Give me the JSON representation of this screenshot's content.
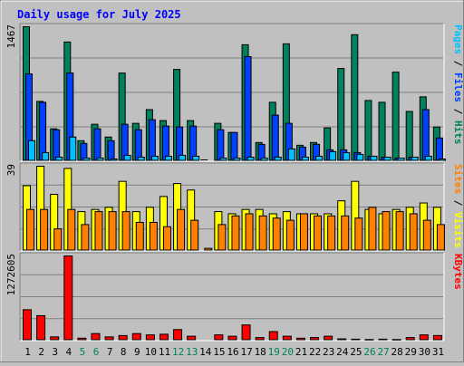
{
  "chart_data": {
    "type": "bar",
    "title": "Daily usage for July 2025",
    "categories": [
      "1",
      "2",
      "3",
      "4",
      "5",
      "6",
      "7",
      "8",
      "9",
      "10",
      "11",
      "12",
      "13",
      "14",
      "15",
      "16",
      "17",
      "18",
      "19",
      "20",
      "21",
      "22",
      "23",
      "24",
      "25",
      "26",
      "27",
      "28",
      "29",
      "30",
      "31"
    ],
    "weekend_days": [
      "5",
      "6",
      "12",
      "13",
      "19",
      "20",
      "26",
      "27"
    ],
    "panels": [
      {
        "id": "hits-panel",
        "max_label": "1467",
        "ymax": 1467,
        "legend": [
          {
            "label": "Pages",
            "color": "#00c0ff"
          },
          {
            "label": " / ",
            "color": "#000000"
          },
          {
            "label": "Files",
            "color": "#0040ff"
          },
          {
            "label": " / ",
            "color": "#000000"
          },
          {
            "label": "Hits",
            "color": "#00805c"
          }
        ],
        "series": [
          {
            "name": "Hits",
            "color": "#00805c",
            "values": [
              1467,
              650,
              350,
              1300,
              220,
              400,
              260,
              960,
              410,
              560,
              440,
              1000,
              440,
              0,
              410,
              310,
              1270,
              200,
              640,
              1280,
              170,
              200,
              360,
              1010,
              1380,
              660,
              640,
              970,
              540,
              700,
              370
            ]
          },
          {
            "name": "Files",
            "color": "#0040ff",
            "values": [
              950,
              640,
              340,
              960,
              190,
              350,
              220,
              400,
              340,
              450,
              380,
              370,
              380,
              0,
              340,
              310,
              1140,
              180,
              500,
              410,
              150,
              180,
              120,
              120,
              90,
              50,
              40,
              30,
              40,
              560,
              250
            ]
          },
          {
            "name": "Pages",
            "color": "#00c0ff",
            "values": [
              220,
              90,
              40,
              260,
              30,
              30,
              20,
              60,
              40,
              50,
              50,
              60,
              50,
              0,
              30,
              30,
              40,
              30,
              40,
              130,
              40,
              50,
              100,
              90,
              70,
              50,
              40,
              30,
              40,
              50,
              20
            ]
          }
        ]
      },
      {
        "id": "visits-panel",
        "max_label": "39",
        "ymax": 39,
        "legend": [
          {
            "label": "Sites",
            "color": "#ff8000"
          },
          {
            "label": " / ",
            "color": "#000000"
          },
          {
            "label": "Visits",
            "color": "#ffff00"
          }
        ],
        "series": [
          {
            "name": "Visits",
            "color": "#ffff00",
            "values": [
              30,
              39,
              26,
              38,
              18,
              19,
              20,
              32,
              18,
              20,
              25,
              31,
              28,
              0,
              18,
              17,
              19,
              19,
              17,
              18,
              17,
              17,
              17,
              23,
              32,
              19,
              17,
              19,
              20,
              22,
              20
            ]
          },
          {
            "name": "Sites",
            "color": "#ff8000",
            "values": [
              19,
              19,
              10,
              19,
              12,
              18,
              18,
              18,
              13,
              13,
              11,
              19,
              14,
              1,
              12,
              16,
              17,
              16,
              15,
              14,
              17,
              16,
              16,
              16,
              15,
              20,
              18,
              18,
              17,
              14,
              12
            ]
          }
        ]
      },
      {
        "id": "kbytes-panel",
        "max_label": "1272605",
        "ymax": 1272605,
        "legend": [
          {
            "label": "KBytes",
            "color": "#ff0000"
          }
        ],
        "series": [
          {
            "name": "KBytes",
            "color": "#ff0000",
            "values": [
              460000,
              370000,
              50000,
              1272605,
              30000,
              100000,
              50000,
              70000,
              100000,
              80000,
              90000,
              160000,
              60000,
              0,
              80000,
              60000,
              230000,
              40000,
              130000,
              60000,
              30000,
              40000,
              60000,
              20000,
              15000,
              10000,
              15000,
              10000,
              40000,
              80000,
              70000
            ]
          }
        ]
      }
    ],
    "colors": {
      "background": "#c0c0c0",
      "title": "#0000ff",
      "weekday_label": "#000000",
      "weekend_label": "#00805c",
      "border_dark": "#808080",
      "border_light": "#ffffff"
    }
  }
}
